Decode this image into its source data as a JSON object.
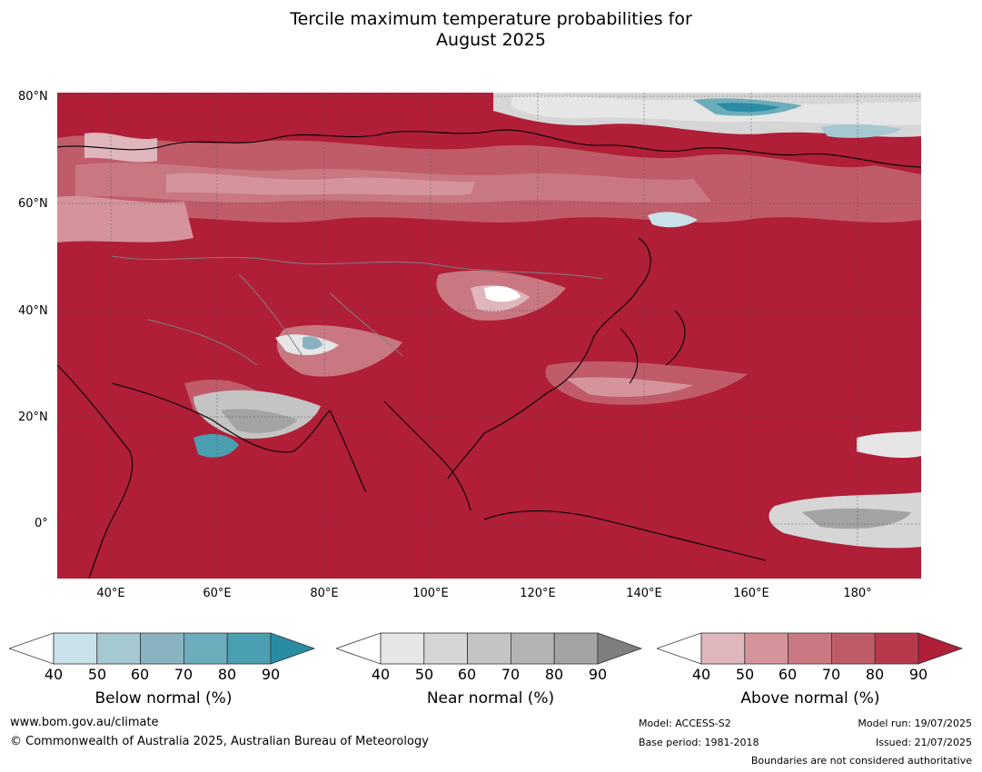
{
  "title": {
    "line1": "Tercile maximum temperature probabilities for",
    "line2": "August 2025"
  },
  "map": {
    "lat_labels": [
      "80°N",
      "60°N",
      "40°N",
      "20°N",
      "0°"
    ],
    "lon_labels": [
      "40°E",
      "60°E",
      "80°E",
      "100°E",
      "120°E",
      "140°E",
      "160°E",
      "180°"
    ],
    "extent": {
      "lon": [
        30,
        192
      ],
      "lat": [
        -10,
        80
      ]
    }
  },
  "legend": {
    "below": {
      "title": "Below normal (%)",
      "ticks": [
        "40",
        "50",
        "60",
        "70",
        "80",
        "90"
      ],
      "colors": [
        "#c9e1e8",
        "#a6c8d0",
        "#89b3c1",
        "#6badba",
        "#4a9fb0",
        "#2a8ca3"
      ]
    },
    "near": {
      "title": "Near normal (%)",
      "ticks": [
        "40",
        "50",
        "60",
        "70",
        "80",
        "90"
      ],
      "colors": [
        "#e6e6e6",
        "#d6d6d6",
        "#c4c4c4",
        "#b3b3b3",
        "#a3a3a3",
        "#7f7f7f"
      ]
    },
    "above": {
      "title": "Above normal (%)",
      "ticks": [
        "40",
        "50",
        "60",
        "70",
        "80",
        "90"
      ],
      "colors": [
        "#dfb6bc",
        "#d5949c",
        "#c97882",
        "#c05c6a",
        "#b63a4c",
        "#b01e38"
      ]
    }
  },
  "footer": {
    "website": "www.bom.gov.au/climate",
    "copyright": "© Commonwealth of Australia 2025, Australian Bureau of Meteorology",
    "model": "Model: ACCESS-S2",
    "base_period": "Base period: 1981-2018",
    "model_run": "Model run: 19/07/2025",
    "issued": "Issued: 21/07/2025",
    "disclaimer": "Boundaries are not considered authoritative"
  }
}
